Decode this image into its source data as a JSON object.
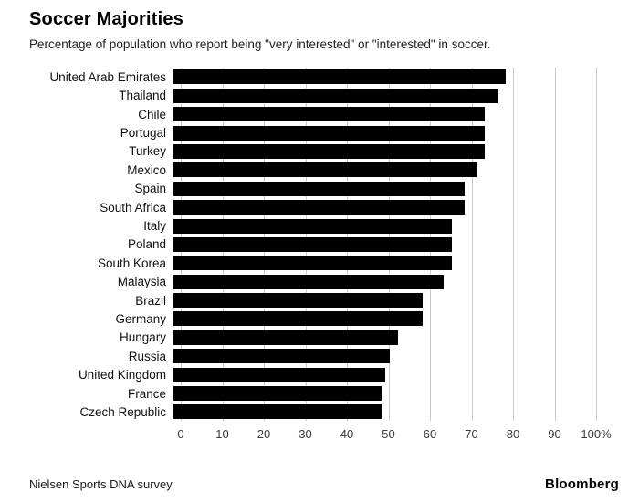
{
  "header": {
    "title": "Soccer Majorities",
    "subtitle": "Percentage of population who report being \"very interested\" or \"interested\" in soccer."
  },
  "footer": {
    "source": "Nielsen Sports DNA survey",
    "brand": "Bloomberg"
  },
  "chart_data": {
    "type": "bar",
    "orientation": "horizontal",
    "title": "Soccer Majorities",
    "subtitle": "Percentage of population who report being \"very interested\" or \"interested\" in soccer.",
    "xlabel": "",
    "ylabel": "",
    "xlim": [
      0,
      100
    ],
    "grid": true,
    "legend": false,
    "bar_color": "#000000",
    "gridline_color": "#c9c9c9",
    "x_ticks": [
      "0",
      "10",
      "20",
      "30",
      "40",
      "50",
      "60",
      "70",
      "80",
      "90",
      "100%"
    ],
    "categories": [
      "United Arab Emirates",
      "Thailand",
      "Chile",
      "Portugal",
      "Turkey",
      "Mexico",
      "Spain",
      "South Africa",
      "Italy",
      "Poland",
      "South Korea",
      "Malaysia",
      "Brazil",
      "Germany",
      "Hungary",
      "Russia",
      "United Kingdom",
      "France",
      "Czech Republic"
    ],
    "values": [
      80,
      78,
      75,
      75,
      75,
      73,
      70,
      70,
      67,
      67,
      67,
      65,
      60,
      60,
      54,
      52,
      51,
      50,
      50
    ]
  }
}
